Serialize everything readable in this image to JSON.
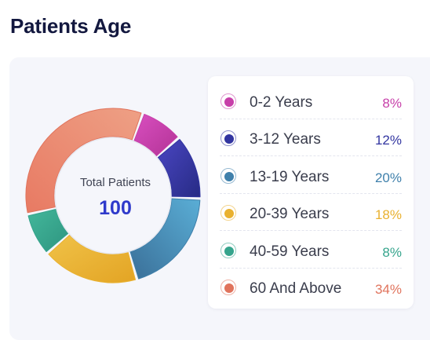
{
  "page": {
    "title": "Patients Age"
  },
  "donut": {
    "center_label": "Total Patients",
    "center_value": "100"
  },
  "legend": {
    "items": [
      {
        "label": "0-2 Years",
        "value": "8%",
        "color": "#c73fa9"
      },
      {
        "label": "3-12 Years",
        "value": "12%",
        "color": "#3235a0"
      },
      {
        "label": "13-19 Years",
        "value": "20%",
        "color": "#3f80ab"
      },
      {
        "label": "20-39 Years",
        "value": "18%",
        "color": "#e9b12f"
      },
      {
        "label": "40-59 Years",
        "value": "8%",
        "color": "#35a48c"
      },
      {
        "label": "60 And Above",
        "value": "34%",
        "color": "#e0735c"
      }
    ]
  },
  "chart_data": {
    "type": "pie",
    "categories": [
      "0-2 Years",
      "3-12 Years",
      "13-19 Years",
      "20-39 Years",
      "40-59 Years",
      "60 And Above"
    ],
    "values": [
      8,
      12,
      20,
      18,
      8,
      34
    ],
    "colors": [
      "#c73fa9",
      "#3235a0",
      "#3f80ab",
      "#e9b12f",
      "#35a48c",
      "#e0735c"
    ],
    "total": 100,
    "title": "Patients Age"
  }
}
